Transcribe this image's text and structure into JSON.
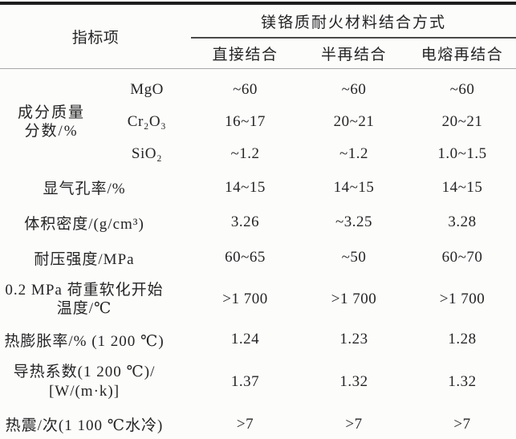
{
  "table": {
    "corner_header": "指标项",
    "spanner": "镁铬质耐火材料结合方式",
    "columns": [
      "直接结合",
      "半再结合",
      "电熔再结合"
    ],
    "composition_group": {
      "label_line1": "成分质量",
      "label_line2": "分数/%",
      "rows": [
        {
          "sub": "MgO",
          "values": [
            "~60",
            "~60",
            "~60"
          ]
        },
        {
          "sub": "Cr₂O₃",
          "values": [
            "16~17",
            "20~21",
            "20~21"
          ]
        },
        {
          "sub": "SiO₂",
          "values": [
            "~1.2",
            "~1.2",
            "1.0~1.5"
          ]
        }
      ]
    },
    "rows": [
      {
        "label": "显气孔率/%",
        "values": [
          "14~15",
          "14~15",
          "14~15"
        ]
      },
      {
        "label": "体积密度/(g/cm³)",
        "values": [
          "3.26",
          "~3.25",
          "3.28"
        ]
      },
      {
        "label": "耐压强度/MPa",
        "values": [
          "60~65",
          "~50",
          "60~70"
        ]
      },
      {
        "label": "0.2 MPa 荷重软化开始",
        "label2": "温度/℃",
        "values": [
          ">1 700",
          ">1 700",
          ">1 700"
        ]
      },
      {
        "label": "热膨胀率/% (1 200 ℃)",
        "values": [
          "1.24",
          "1.23",
          "1.28"
        ]
      },
      {
        "label": "导热系数(1 200 ℃)/",
        "label2": "[W/(m·k)]",
        "values": [
          "1.37",
          "1.32",
          "1.32"
        ]
      },
      {
        "label": "热震/次(1 100 ℃水冷)",
        "values": [
          ">7",
          ">7",
          ">7"
        ]
      }
    ]
  }
}
